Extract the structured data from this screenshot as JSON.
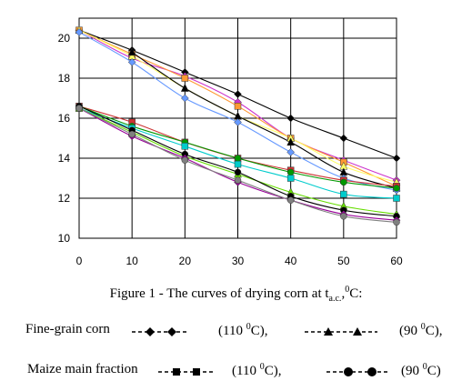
{
  "chart_data": {
    "type": "line",
    "x": [
      0,
      10,
      20,
      30,
      40,
      50,
      60
    ],
    "xlim": [
      0,
      60
    ],
    "ylim": [
      10,
      21
    ],
    "x_ticks": [
      0,
      10,
      20,
      30,
      40,
      50,
      60
    ],
    "y_ticks": [
      10,
      12,
      14,
      16,
      18,
      20
    ],
    "grid": true,
    "series": [
      {
        "marker": "diamond",
        "color": "#000000",
        "values": [
          20.4,
          19.4,
          18.3,
          17.2,
          16.0,
          15.0,
          14.0
        ]
      },
      {
        "marker": "diamond",
        "color": "#cc33cc",
        "values": [
          20.4,
          19.0,
          18.1,
          16.8,
          15.0,
          13.9,
          12.9
        ]
      },
      {
        "marker": "square",
        "color": "#ff9933",
        "values": [
          20.4,
          19.2,
          18.0,
          16.6,
          15.0,
          13.8,
          12.6
        ]
      },
      {
        "marker": "triangle",
        "color": "#ffff66",
        "values": [
          20.4,
          19.1,
          17.5,
          16.1,
          15.0,
          13.6,
          12.8
        ]
      },
      {
        "marker": "triangle",
        "color": "#000000",
        "values": [
          null,
          19.3,
          17.5,
          16.1,
          14.8,
          13.3,
          12.5
        ]
      },
      {
        "marker": "diamond",
        "color": "#6699ff",
        "values": [
          20.3,
          18.8,
          17.0,
          15.8,
          14.3,
          13.0,
          12.4
        ]
      },
      {
        "marker": "square",
        "color": "#cc3333",
        "values": [
          16.6,
          15.8,
          14.8,
          14.0,
          13.4,
          12.9,
          12.6
        ]
      },
      {
        "marker": "circle",
        "color": "#009900",
        "values": [
          16.6,
          15.6,
          14.8,
          14.0,
          13.3,
          12.8,
          12.5
        ]
      },
      {
        "marker": "square",
        "color": "#00cccc",
        "values": [
          16.5,
          15.5,
          14.6,
          13.7,
          13.0,
          12.2,
          12.0
        ]
      },
      {
        "marker": "triangle",
        "color": "#66dd00",
        "values": [
          16.5,
          15.3,
          14.1,
          13.2,
          12.3,
          11.6,
          11.2
        ]
      },
      {
        "marker": "circle",
        "color": "#000000",
        "values": [
          16.6,
          15.4,
          14.2,
          13.3,
          12.1,
          11.4,
          11.1
        ]
      },
      {
        "marker": "diamond",
        "color": "#990099",
        "values": [
          16.5,
          15.1,
          14.0,
          12.8,
          11.9,
          11.2,
          10.9
        ]
      },
      {
        "marker": "circle",
        "color": "#808080",
        "values": [
          16.5,
          15.2,
          13.9,
          12.9,
          11.9,
          11.1,
          10.8
        ]
      }
    ]
  },
  "caption": {
    "main": "Figure 1 - The curves of drying corn at t",
    "subscript": "a.c.",
    "comma": ",",
    "superscript": "0",
    "unit": "C:"
  },
  "legend": {
    "rows": [
      {
        "left_label": "Fine-grain corn",
        "left_symbol": "diamond",
        "left_temp_prefix": "(110",
        "left_temp_sup": "0",
        "left_temp_suffix": "C),",
        "right_symbol": "triangle",
        "right_temp_prefix": "(90",
        "right_temp_sup": "0",
        "right_temp_suffix": "C),"
      },
      {
        "left_label": "Maize main fraction",
        "left_symbol": "square",
        "left_temp_prefix": "(110",
        "left_temp_sup": "0",
        "left_temp_suffix": "C),",
        "right_symbol": "circle",
        "right_temp_prefix": "(90",
        "right_temp_sup": "0",
        "right_temp_suffix": "C)"
      }
    ]
  }
}
